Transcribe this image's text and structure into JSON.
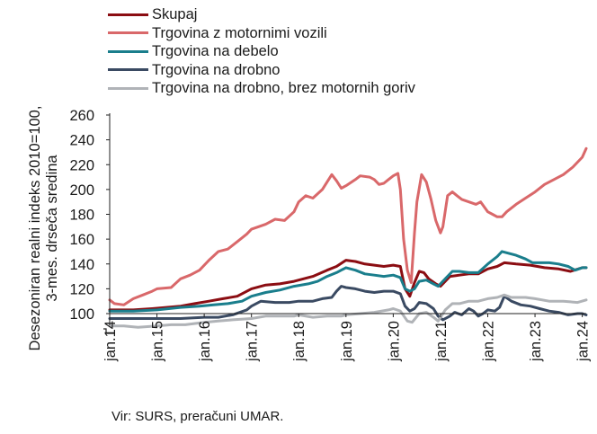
{
  "chart_data": {
    "type": "line",
    "ylabel": "Desezoniran realni indeks 2010=100,\n3-mes. drseča sredina",
    "ylim": [
      100,
      260
    ],
    "yticks": [
      100,
      120,
      140,
      160,
      180,
      200,
      220,
      240,
      260
    ],
    "x_range": [
      2014.0,
      2024.0833
    ],
    "xtick_labels": [
      "jan.14",
      "jan.15",
      "jan.16",
      "jan.17",
      "jan.18",
      "jan.19",
      "jan.20",
      "jan.21",
      "jan.22",
      "jan.23",
      "jan.24"
    ],
    "axis_break": true,
    "grid": false,
    "legend_position": "top-left",
    "series": [
      {
        "name": "Skupaj",
        "color": "#8b0d12",
        "points": [
          [
            2014.0,
            103
          ],
          [
            2014.5,
            103
          ],
          [
            2014.9,
            104
          ],
          [
            2015.2,
            105
          ],
          [
            2015.5,
            106
          ],
          [
            2015.8,
            108
          ],
          [
            2016.1,
            110
          ],
          [
            2016.4,
            112
          ],
          [
            2016.7,
            114
          ],
          [
            2017.0,
            120
          ],
          [
            2017.3,
            123
          ],
          [
            2017.6,
            124
          ],
          [
            2017.9,
            126
          ],
          [
            2018.1,
            128
          ],
          [
            2018.3,
            130
          ],
          [
            2018.6,
            135
          ],
          [
            2018.8,
            138
          ],
          [
            2019.0,
            143
          ],
          [
            2019.2,
            142
          ],
          [
            2019.4,
            140
          ],
          [
            2019.6,
            139
          ],
          [
            2019.8,
            138
          ],
          [
            2020.0,
            139
          ],
          [
            2020.15,
            138
          ],
          [
            2020.25,
            120
          ],
          [
            2020.35,
            114
          ],
          [
            2020.45,
            125
          ],
          [
            2020.55,
            134
          ],
          [
            2020.65,
            133
          ],
          [
            2020.75,
            128
          ],
          [
            2020.9,
            124
          ],
          [
            2021.0,
            122
          ],
          [
            2021.1,
            126
          ],
          [
            2021.2,
            130
          ],
          [
            2021.4,
            131
          ],
          [
            2021.6,
            132
          ],
          [
            2021.8,
            132
          ],
          [
            2022.0,
            136
          ],
          [
            2022.2,
            138
          ],
          [
            2022.35,
            141
          ],
          [
            2022.6,
            140
          ],
          [
            2022.9,
            139
          ],
          [
            2023.2,
            137
          ],
          [
            2023.5,
            136
          ],
          [
            2023.75,
            134
          ],
          [
            2024.0,
            137
          ],
          [
            2024.0833,
            137
          ]
        ]
      },
      {
        "name": "Trgovina z motornimi vozili",
        "color": "#d9686a",
        "points": [
          [
            2014.0,
            111
          ],
          [
            2014.1,
            108
          ],
          [
            2014.3,
            107
          ],
          [
            2014.5,
            112
          ],
          [
            2014.7,
            115
          ],
          [
            2014.9,
            118
          ],
          [
            2015.0,
            120
          ],
          [
            2015.3,
            121
          ],
          [
            2015.5,
            128
          ],
          [
            2015.7,
            131
          ],
          [
            2015.9,
            135
          ],
          [
            2016.1,
            143
          ],
          [
            2016.3,
            150
          ],
          [
            2016.5,
            152
          ],
          [
            2016.7,
            158
          ],
          [
            2016.9,
            164
          ],
          [
            2017.0,
            168
          ],
          [
            2017.3,
            172
          ],
          [
            2017.5,
            176
          ],
          [
            2017.7,
            175
          ],
          [
            2017.9,
            182
          ],
          [
            2018.0,
            190
          ],
          [
            2018.15,
            195
          ],
          [
            2018.3,
            193
          ],
          [
            2018.5,
            200
          ],
          [
            2018.7,
            212
          ],
          [
            2018.8,
            207
          ],
          [
            2018.9,
            201
          ],
          [
            2019.0,
            203
          ],
          [
            2019.2,
            208
          ],
          [
            2019.3,
            211
          ],
          [
            2019.5,
            210
          ],
          [
            2019.6,
            208
          ],
          [
            2019.7,
            204
          ],
          [
            2019.8,
            205
          ],
          [
            2019.9,
            208
          ],
          [
            2020.0,
            211
          ],
          [
            2020.1,
            213
          ],
          [
            2020.15,
            200
          ],
          [
            2020.22,
            160
          ],
          [
            2020.3,
            135
          ],
          [
            2020.38,
            125
          ],
          [
            2020.45,
            165
          ],
          [
            2020.5,
            190
          ],
          [
            2020.6,
            212
          ],
          [
            2020.7,
            206
          ],
          [
            2020.8,
            192
          ],
          [
            2020.9,
            175
          ],
          [
            2021.0,
            165
          ],
          [
            2021.05,
            170
          ],
          [
            2021.15,
            195
          ],
          [
            2021.25,
            198
          ],
          [
            2021.35,
            195
          ],
          [
            2021.45,
            192
          ],
          [
            2021.6,
            190
          ],
          [
            2021.75,
            188
          ],
          [
            2021.85,
            190
          ],
          [
            2022.0,
            182
          ],
          [
            2022.1,
            180
          ],
          [
            2022.2,
            178
          ],
          [
            2022.3,
            178
          ],
          [
            2022.4,
            182
          ],
          [
            2022.6,
            188
          ],
          [
            2022.8,
            193
          ],
          [
            2023.0,
            198
          ],
          [
            2023.2,
            204
          ],
          [
            2023.4,
            208
          ],
          [
            2023.6,
            212
          ],
          [
            2023.8,
            218
          ],
          [
            2024.0,
            226
          ],
          [
            2024.0833,
            233
          ]
        ]
      },
      {
        "name": "Trgovina na debelo",
        "color": "#1a7e8c",
        "points": [
          [
            2014.0,
            102
          ],
          [
            2014.5,
            102
          ],
          [
            2015.0,
            103
          ],
          [
            2015.5,
            105
          ],
          [
            2015.9,
            106
          ],
          [
            2016.2,
            107
          ],
          [
            2016.5,
            108
          ],
          [
            2016.8,
            110
          ],
          [
            2017.0,
            114
          ],
          [
            2017.3,
            117
          ],
          [
            2017.6,
            119
          ],
          [
            2017.9,
            122
          ],
          [
            2018.2,
            124
          ],
          [
            2018.4,
            126
          ],
          [
            2018.6,
            130
          ],
          [
            2018.8,
            133
          ],
          [
            2019.0,
            137
          ],
          [
            2019.2,
            135
          ],
          [
            2019.4,
            132
          ],
          [
            2019.6,
            131
          ],
          [
            2019.8,
            130
          ],
          [
            2020.0,
            131
          ],
          [
            2020.15,
            129
          ],
          [
            2020.25,
            120
          ],
          [
            2020.35,
            118
          ],
          [
            2020.45,
            120
          ],
          [
            2020.55,
            126
          ],
          [
            2020.7,
            127
          ],
          [
            2020.85,
            124
          ],
          [
            2020.95,
            122
          ],
          [
            2021.1,
            128
          ],
          [
            2021.25,
            134
          ],
          [
            2021.4,
            134
          ],
          [
            2021.6,
            133
          ],
          [
            2021.8,
            133
          ],
          [
            2022.0,
            140
          ],
          [
            2022.2,
            146
          ],
          [
            2022.3,
            150
          ],
          [
            2022.4,
            149
          ],
          [
            2022.6,
            147
          ],
          [
            2022.8,
            144
          ],
          [
            2022.95,
            141
          ],
          [
            2023.1,
            141
          ],
          [
            2023.3,
            141
          ],
          [
            2023.5,
            140
          ],
          [
            2023.7,
            138
          ],
          [
            2023.85,
            135
          ],
          [
            2024.0,
            137
          ],
          [
            2024.0833,
            137
          ]
        ]
      },
      {
        "name": "Trgovina na drobno",
        "color": "#3a4a62",
        "points": [
          [
            2014.0,
            96
          ],
          [
            2014.5,
            96
          ],
          [
            2015.0,
            96
          ],
          [
            2015.5,
            96
          ],
          [
            2016.0,
            97
          ],
          [
            2016.3,
            97
          ],
          [
            2016.6,
            99
          ],
          [
            2016.9,
            103
          ],
          [
            2017.0,
            106
          ],
          [
            2017.2,
            110
          ],
          [
            2017.5,
            109
          ],
          [
            2017.8,
            109
          ],
          [
            2018.0,
            110
          ],
          [
            2018.3,
            110
          ],
          [
            2018.5,
            112
          ],
          [
            2018.7,
            113
          ],
          [
            2018.8,
            118
          ],
          [
            2018.9,
            122
          ],
          [
            2019.0,
            121
          ],
          [
            2019.2,
            120
          ],
          [
            2019.4,
            118
          ],
          [
            2019.6,
            117
          ],
          [
            2019.8,
            118
          ],
          [
            2020.0,
            118
          ],
          [
            2020.15,
            116
          ],
          [
            2020.25,
            106
          ],
          [
            2020.35,
            102
          ],
          [
            2020.45,
            104
          ],
          [
            2020.55,
            109
          ],
          [
            2020.7,
            108
          ],
          [
            2020.85,
            104
          ],
          [
            2020.95,
            98
          ],
          [
            2021.05,
            95
          ],
          [
            2021.2,
            98
          ],
          [
            2021.3,
            101
          ],
          [
            2021.45,
            99
          ],
          [
            2021.6,
            104
          ],
          [
            2021.7,
            102
          ],
          [
            2021.8,
            98
          ],
          [
            2021.9,
            100
          ],
          [
            2022.0,
            103
          ],
          [
            2022.15,
            102
          ],
          [
            2022.25,
            105
          ],
          [
            2022.35,
            114
          ],
          [
            2022.5,
            110
          ],
          [
            2022.7,
            107
          ],
          [
            2022.9,
            106
          ],
          [
            2023.1,
            104
          ],
          [
            2023.3,
            102
          ],
          [
            2023.5,
            101
          ],
          [
            2023.7,
            99
          ],
          [
            2023.9,
            100
          ],
          [
            2024.0,
            100
          ],
          [
            2024.0833,
            99
          ]
        ]
      },
      {
        "name": "Trgovina na drobno, brez motornih goriv",
        "color": "#b0b3b7",
        "points": [
          [
            2014.0,
            90
          ],
          [
            2014.3,
            90
          ],
          [
            2014.6,
            89
          ],
          [
            2015.0,
            90
          ],
          [
            2015.3,
            91
          ],
          [
            2015.6,
            91
          ],
          [
            2016.0,
            93
          ],
          [
            2016.3,
            94
          ],
          [
            2016.6,
            95
          ],
          [
            2017.0,
            96
          ],
          [
            2017.3,
            98
          ],
          [
            2017.6,
            98
          ],
          [
            2017.9,
            98
          ],
          [
            2018.0,
            99
          ],
          [
            2018.3,
            97
          ],
          [
            2018.6,
            98
          ],
          [
            2018.9,
            98
          ],
          [
            2019.0,
            99
          ],
          [
            2019.3,
            100
          ],
          [
            2019.6,
            101
          ],
          [
            2019.9,
            103
          ],
          [
            2020.0,
            104
          ],
          [
            2020.15,
            102
          ],
          [
            2020.3,
            94
          ],
          [
            2020.4,
            93
          ],
          [
            2020.55,
            100
          ],
          [
            2020.7,
            101
          ],
          [
            2020.85,
            97
          ],
          [
            2020.95,
            94
          ],
          [
            2021.1,
            103
          ],
          [
            2021.25,
            108
          ],
          [
            2021.4,
            108
          ],
          [
            2021.6,
            110
          ],
          [
            2021.8,
            110
          ],
          [
            2022.0,
            112
          ],
          [
            2022.2,
            113
          ],
          [
            2022.35,
            115
          ],
          [
            2022.5,
            113
          ],
          [
            2022.8,
            113
          ],
          [
            2023.0,
            112
          ],
          [
            2023.3,
            110
          ],
          [
            2023.6,
            110
          ],
          [
            2023.9,
            109
          ],
          [
            2024.0833,
            111
          ]
        ]
      }
    ]
  },
  "source_note": "Vir: SURS, preračuni UMAR."
}
